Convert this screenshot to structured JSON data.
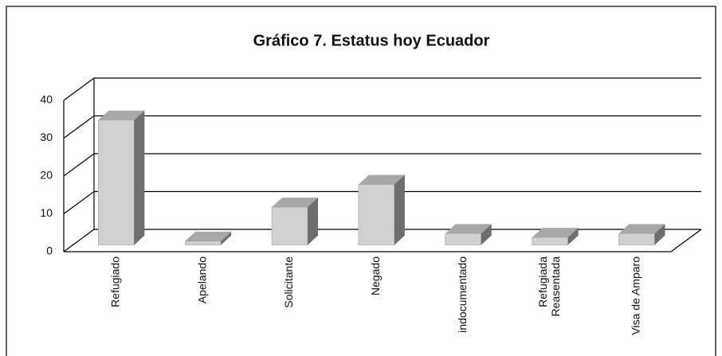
{
  "chart_data": {
    "type": "bar3d",
    "title": "Gráfico 7. Estatus hoy Ecuador",
    "categories": [
      "Refugiado",
      "Apelando",
      "Solicitante",
      "Negado",
      "indocumentado",
      [
        "Refugiada",
        "Reasentada"
      ],
      "Visa de Amparo"
    ],
    "values": [
      33,
      1,
      10,
      16,
      3,
      2,
      3
    ],
    "ylim": [
      0,
      40
    ],
    "yticks": [
      0,
      10,
      20,
      30,
      40
    ],
    "grid": true,
    "color": "#d0d0d0"
  }
}
